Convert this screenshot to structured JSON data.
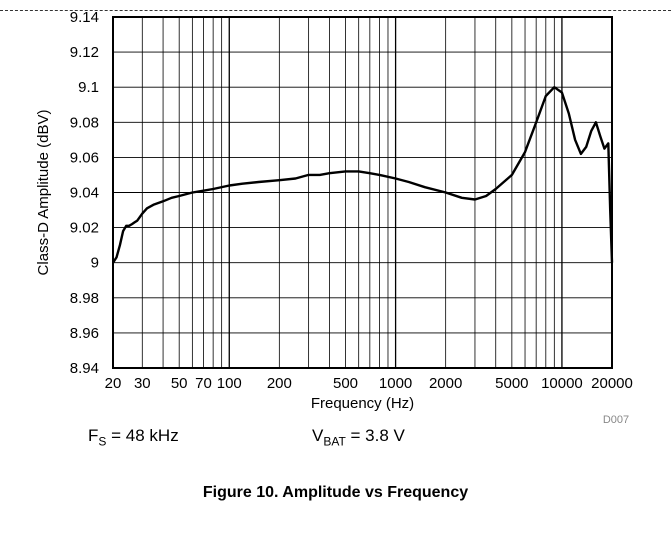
{
  "chart_data": {
    "type": "line",
    "title": "Figure 10. Amplitude vs Frequency",
    "xlabel": "Frequency (Hz)",
    "ylabel": "Class-D Amplitude (dBV)",
    "xscale": "log",
    "xlim": [
      20,
      20000
    ],
    "ylim": [
      8.94,
      9.14
    ],
    "grid": true,
    "x_ticks": [
      20,
      30,
      50,
      70,
      100,
      200,
      500,
      1000,
      2000,
      5000,
      10000,
      20000
    ],
    "x_tick_labels": [
      "20",
      "30",
      "50",
      "70",
      "100",
      "200",
      "500",
      "1000",
      "2000",
      "5000",
      "10000",
      "20000"
    ],
    "y_ticks": [
      8.94,
      8.96,
      8.98,
      9.0,
      9.02,
      9.04,
      9.06,
      9.08,
      9.1,
      9.12,
      9.14
    ],
    "y_tick_labels": [
      "8.94",
      "8.96",
      "8.98",
      "9",
      "9.02",
      "9.04",
      "9.06",
      "9.08",
      "9.1",
      "9.12",
      "9.14"
    ],
    "figure_id": "D007",
    "series": [
      {
        "color": "#000000",
        "x": [
          20,
          21,
          22,
          23,
          24,
          25,
          26,
          27,
          28,
          30,
          32,
          35,
          40,
          45,
          50,
          60,
          70,
          80,
          100,
          120,
          150,
          200,
          250,
          300,
          350,
          400,
          500,
          600,
          700,
          800,
          1000,
          1200,
          1500,
          2000,
          2500,
          3000,
          3500,
          4000,
          5000,
          6000,
          7000,
          8000,
          9000,
          10000,
          11000,
          12000,
          13000,
          14000,
          15000,
          16000,
          17000,
          18000,
          19000,
          19500,
          20000
        ],
        "y": [
          9.0,
          9.003,
          9.01,
          9.018,
          9.021,
          9.021,
          9.022,
          9.023,
          9.024,
          9.028,
          9.031,
          9.033,
          9.035,
          9.037,
          9.038,
          9.04,
          9.041,
          9.042,
          9.044,
          9.045,
          9.046,
          9.047,
          9.048,
          9.05,
          9.05,
          9.051,
          9.052,
          9.052,
          9.051,
          9.05,
          9.048,
          9.046,
          9.043,
          9.04,
          9.037,
          9.036,
          9.038,
          9.042,
          9.05,
          9.063,
          9.08,
          9.095,
          9.1,
          9.097,
          9.085,
          9.07,
          9.062,
          9.066,
          9.075,
          9.08,
          9.072,
          9.065,
          9.068,
          9.03,
          9.0
        ]
      }
    ]
  },
  "conditions": {
    "fs_symbol": "F",
    "fs_sub": "S",
    "fs_value": " = 48 kHz",
    "vbat_symbol": "V",
    "vbat_sub": "BAT",
    "vbat_value": " = 3.8 V"
  },
  "caption": "Figure 10. Amplitude vs Frequency"
}
